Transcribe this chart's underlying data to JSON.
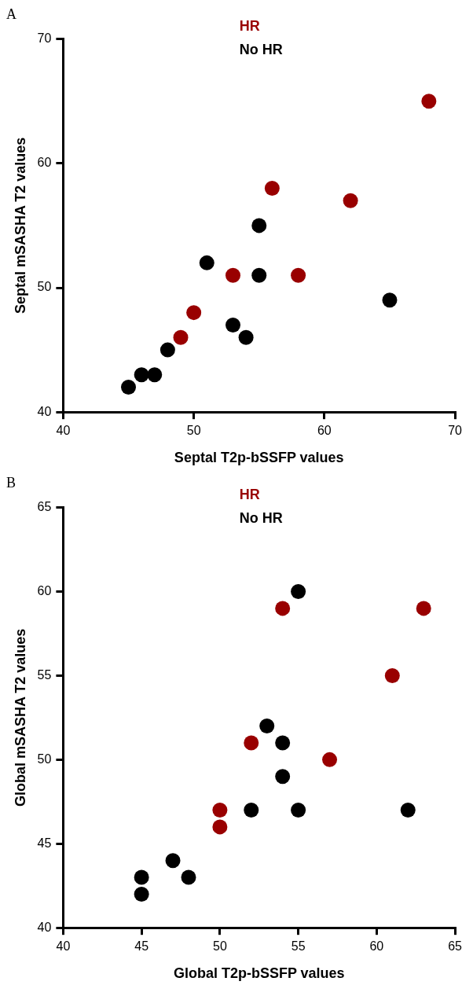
{
  "chart_data": [
    {
      "type": "scatter",
      "title": "A",
      "xlabel": "Septal T2p-bSSFP values",
      "ylabel": "Septal mSASHA T2 values",
      "xlim": [
        40,
        70
      ],
      "xticks": [
        40,
        50,
        60,
        70
      ],
      "ylim": [
        40,
        70
      ],
      "yticks": [
        40,
        50,
        60,
        70
      ],
      "legend": "top",
      "marker": "circle",
      "series": [
        {
          "name": "HR",
          "color": "#990000",
          "x": [
            68,
            56,
            62,
            53,
            58,
            50,
            49
          ],
          "values": [
            65,
            58,
            57,
            51,
            51,
            48,
            46
          ]
        },
        {
          "name": "No HR",
          "color": "#000000",
          "x": [
            55,
            51,
            55,
            65,
            53,
            54,
            48,
            46,
            47,
            45
          ],
          "values": [
            55,
            52,
            51,
            49,
            47,
            46,
            45,
            43,
            43,
            42
          ]
        }
      ]
    },
    {
      "type": "scatter",
      "title": "B",
      "xlabel": "Global T2p-bSSFP values",
      "ylabel": "Global mSASHA T2 values",
      "xlim": [
        40,
        65
      ],
      "xticks": [
        40,
        45,
        50,
        55,
        60,
        65
      ],
      "ylim": [
        40,
        65
      ],
      "yticks": [
        40,
        45,
        50,
        55,
        60,
        65
      ],
      "legend": "top",
      "marker": "circle",
      "series": [
        {
          "name": "HR",
          "color": "#990000",
          "x": [
            54,
            63,
            61,
            52,
            57,
            50,
            50
          ],
          "values": [
            59,
            59,
            55,
            51,
            50,
            47,
            46
          ]
        },
        {
          "name": "No HR",
          "color": "#000000",
          "x": [
            55,
            53,
            54,
            54,
            52,
            55,
            62,
            47,
            45,
            48,
            45
          ],
          "values": [
            60,
            52,
            51,
            49,
            47,
            47,
            47,
            44,
            43,
            43,
            42
          ]
        }
      ]
    }
  ]
}
